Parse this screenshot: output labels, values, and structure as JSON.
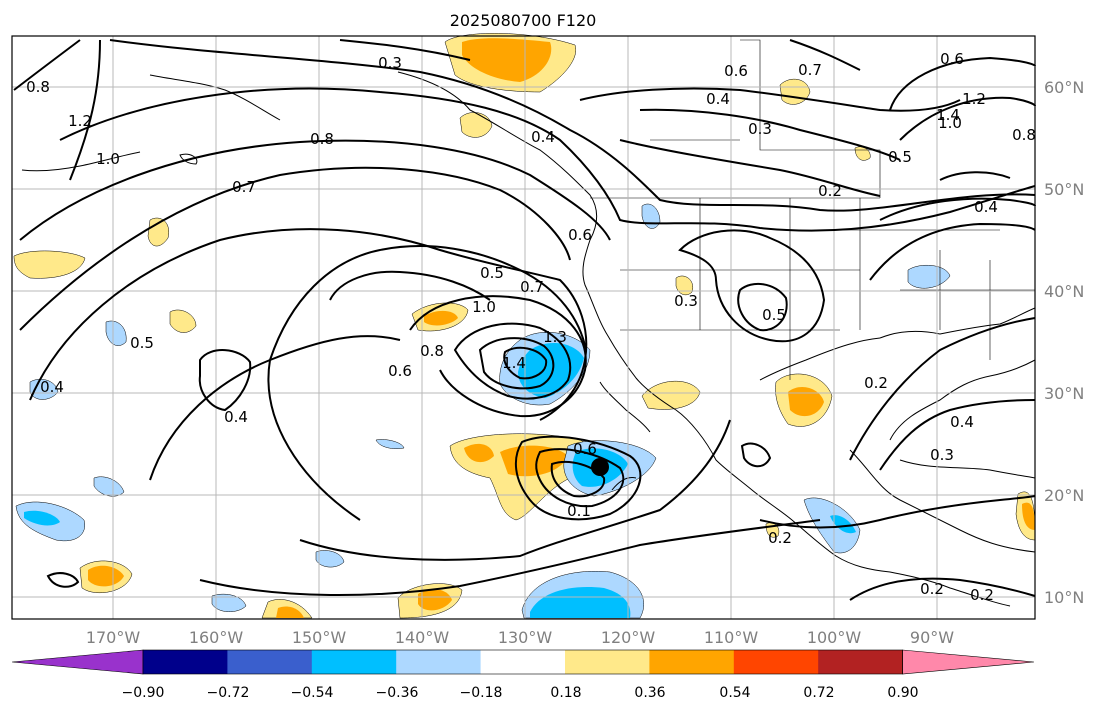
{
  "map": {
    "title": "2025080700 F120",
    "lon_labels": [
      "170°W",
      "160°W",
      "150°W",
      "140°W",
      "130°W",
      "120°W",
      "110°W",
      "100°W",
      "90°W"
    ],
    "lat_labels": [
      "60°N",
      "50°N",
      "40°N",
      "30°N",
      "20°N",
      "10°N"
    ],
    "contour_labels": [
      {
        "text": "0.3"
      },
      {
        "text": "0.7"
      },
      {
        "text": "0.6"
      },
      {
        "text": "0.4"
      },
      {
        "text": "0.3"
      },
      {
        "text": "0.5"
      },
      {
        "text": "0.2"
      },
      {
        "text": "0.8"
      },
      {
        "text": "1.2"
      },
      {
        "text": "1.0"
      },
      {
        "text": "0.8"
      },
      {
        "text": "0.7"
      },
      {
        "text": "0.4"
      },
      {
        "text": "0.6"
      },
      {
        "text": "0.5"
      },
      {
        "text": "0.7"
      },
      {
        "text": "1.0"
      },
      {
        "text": "0.8"
      },
      {
        "text": "0.6"
      },
      {
        "text": "1.4"
      },
      {
        "text": "1.3"
      },
      {
        "text": "0.5"
      },
      {
        "text": "0.4"
      },
      {
        "text": "0.6"
      },
      {
        "text": "0.1"
      },
      {
        "text": "0.2"
      },
      {
        "text": "0.3"
      },
      {
        "text": "0.4"
      },
      {
        "text": "0.2"
      },
      {
        "text": "0.3"
      },
      {
        "text": "0.2"
      },
      {
        "text": "0.2"
      },
      {
        "text": "0.4"
      },
      {
        "text": "0.5"
      },
      {
        "text": "1.4"
      },
      {
        "text": "1.2"
      },
      {
        "text": "1.0"
      },
      {
        "text": "0.8"
      },
      {
        "text": "0.4"
      },
      {
        "text": "0.6"
      }
    ],
    "marker": "storm-center",
    "colorbar": {
      "ticks": [
        "−0.90",
        "−0.72",
        "−0.54",
        "−0.36",
        "−0.18",
        "0.18",
        "0.36",
        "0.54",
        "0.72",
        "0.90"
      ],
      "colors": [
        "#9932cc",
        "#00008b",
        "#3a5fcd",
        "#00bfff",
        "#add8ff",
        "#ffffff",
        "#ffe98a",
        "#ffa500",
        "#ff4500",
        "#b22222",
        "#ff88aa"
      ]
    }
  }
}
